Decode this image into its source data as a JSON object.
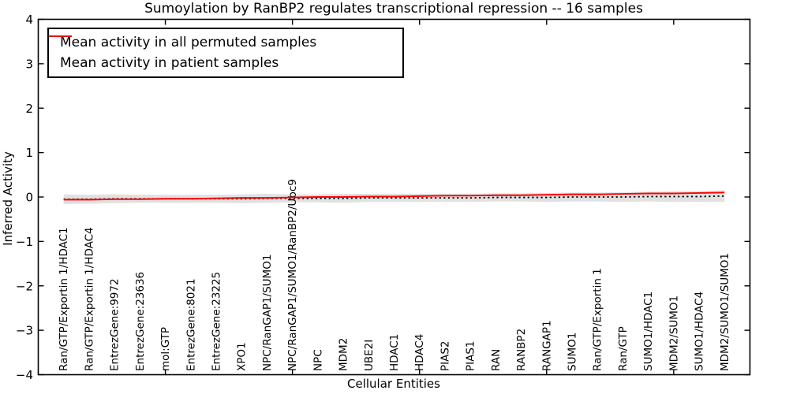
{
  "chart_data": {
    "type": "line",
    "title": "Sumoylation by RanBP2 regulates transcriptional repression -- 16 samples",
    "xlabel": "Cellular Entities",
    "ylabel": "Inferred Activity",
    "xlim": [
      0,
      28
    ],
    "ylim": [
      -4,
      4
    ],
    "xticks": [
      5,
      10,
      15,
      20,
      25
    ],
    "yticks": [
      4,
      3,
      2,
      1,
      0,
      -1,
      -2,
      -3,
      -4
    ],
    "ytick_labels": [
      "4",
      "3",
      "2",
      "1",
      "0",
      "−1",
      "−2",
      "−3",
      "−4"
    ],
    "grid": false,
    "legend_position": "upper left",
    "categories": [
      "Ran/GTP/Exportin 1/HDAC1",
      "Ran/GTP/Exportin 1/HDAC4",
      "EntrezGene:9972",
      "EntrezGene:23636",
      "mol:GTP",
      "EntrezGene:8021",
      "EntrezGene:23225",
      "XPO1",
      "NPC/RanGAP1/SUMO1",
      "NPC/RanGAP1/SUMO1/RanBP2/Ubc9",
      "NPC",
      "MDM2",
      "UBE2I",
      "HDAC1",
      "HDAC4",
      "PIAS2",
      "PIAS1",
      "RAN",
      "RANBP2",
      "RANGAP1",
      "SUMO1",
      "Ran/GTP/Exportin 1",
      "Ran/GTP",
      "SUMO1/HDAC1",
      "MDM2/SUMO1",
      "SUMO1/HDAC4",
      "MDM2/SUMO1/SUMO1"
    ],
    "series": [
      {
        "name": "Mean activity in all permuted samples",
        "color": "#000000",
        "style": "dotted",
        "values": [
          -0.05,
          -0.05,
          -0.04,
          -0.04,
          -0.04,
          -0.04,
          -0.04,
          -0.04,
          -0.03,
          -0.03,
          -0.03,
          -0.03,
          -0.02,
          -0.02,
          -0.02,
          -0.02,
          -0.02,
          -0.01,
          -0.01,
          -0.01,
          0.0,
          0.0,
          0.0,
          0.01,
          0.01,
          0.01,
          0.02
        ]
      },
      {
        "name": "Mean activity in patient samples",
        "color": "#ff0000",
        "style": "solid",
        "values": [
          -0.06,
          -0.06,
          -0.05,
          -0.05,
          -0.04,
          -0.04,
          -0.03,
          -0.02,
          -0.02,
          -0.01,
          0.0,
          0.0,
          0.01,
          0.01,
          0.02,
          0.03,
          0.03,
          0.04,
          0.04,
          0.05,
          0.06,
          0.06,
          0.07,
          0.08,
          0.08,
          0.09,
          0.1
        ]
      }
    ],
    "band": {
      "description": "spread of permuted samples around permuted mean",
      "center_series": 0,
      "color": "#d9d9d9",
      "halfwidth": [
        0.11,
        0.1,
        0.1,
        0.09,
        0.09,
        0.09,
        0.09,
        0.1,
        0.1,
        0.09,
        0.09,
        0.1,
        0.09,
        0.09,
        0.09,
        0.09,
        0.09,
        0.09,
        0.09,
        0.1,
        0.1,
        0.1,
        0.11,
        0.11,
        0.12,
        0.12,
        0.13
      ]
    }
  }
}
